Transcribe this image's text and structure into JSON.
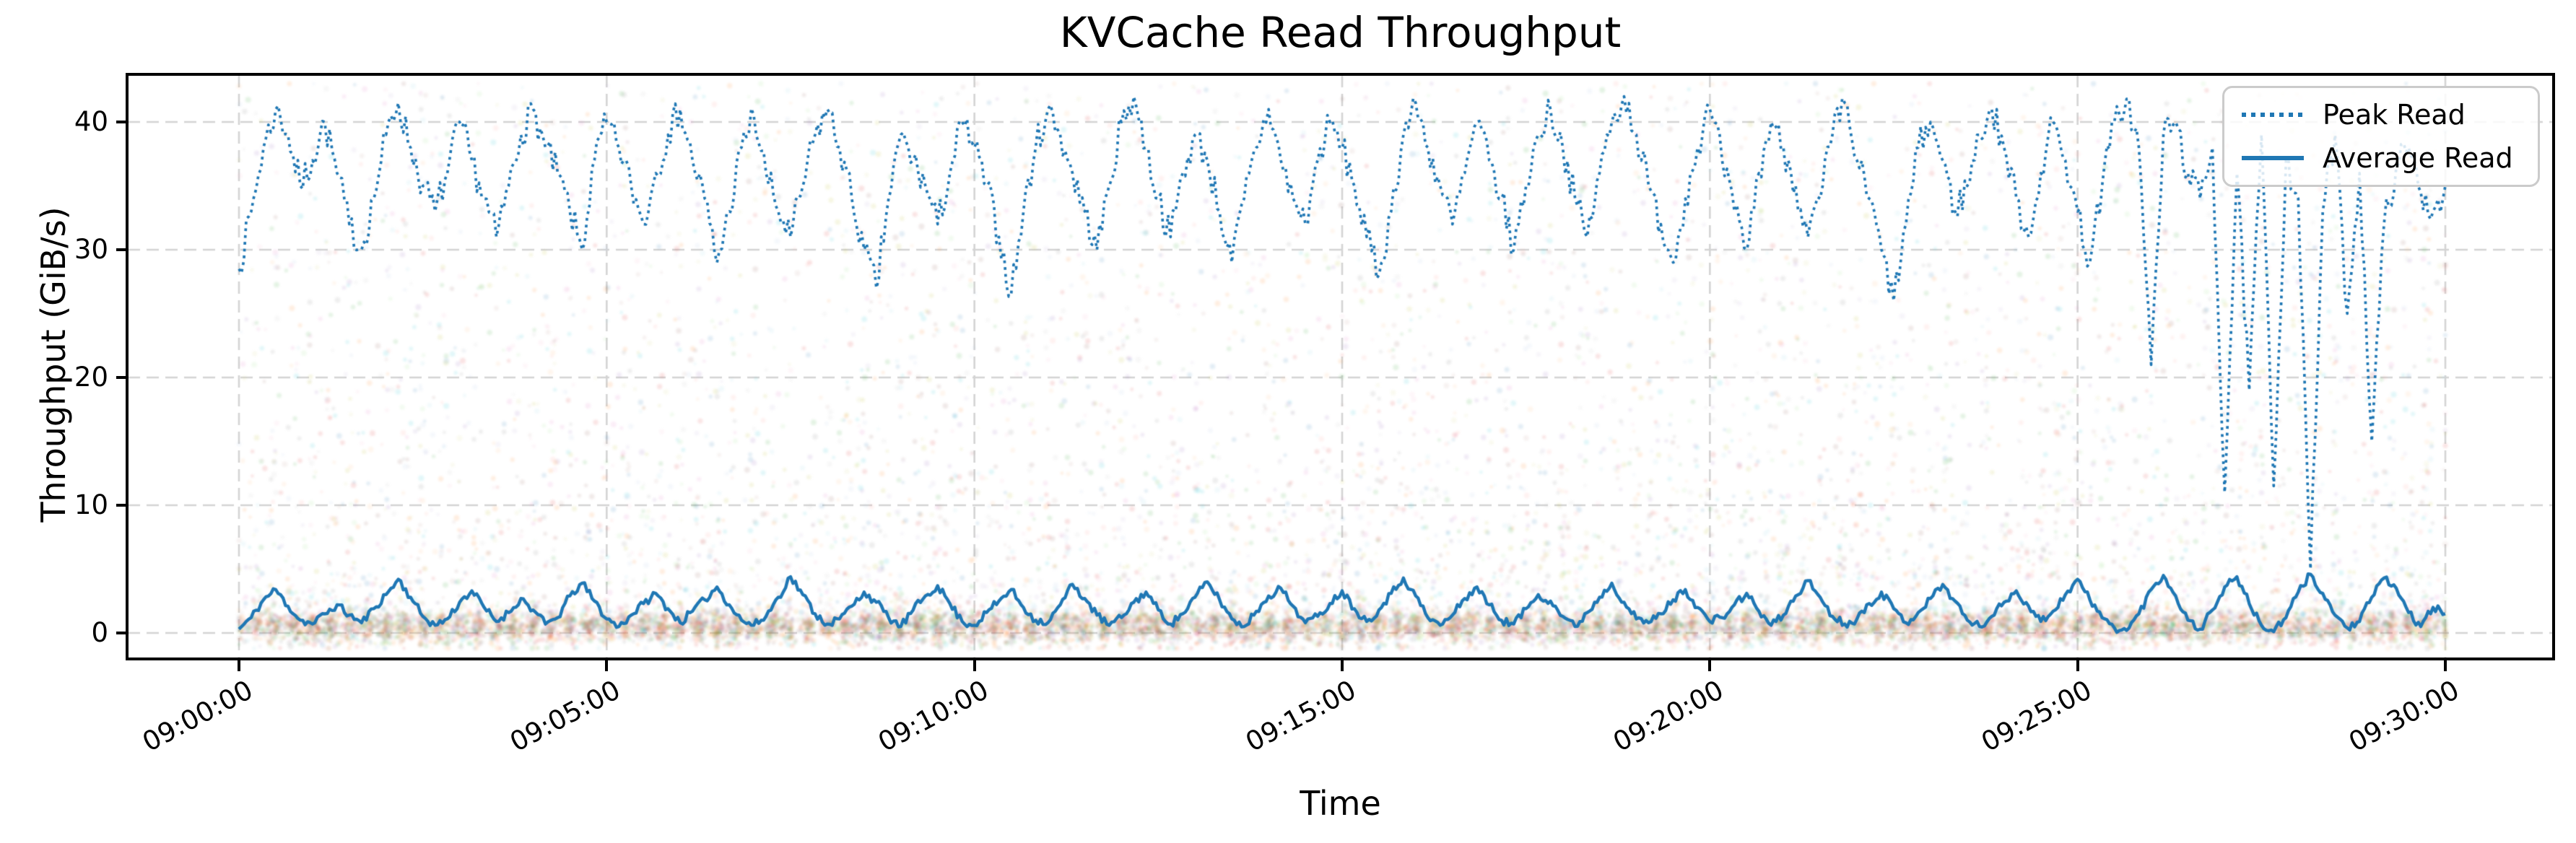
{
  "figure": {
    "title": "KVCache Read Throughput"
  },
  "axes": {
    "xlabel": "Time",
    "ylabel": "Throughput (GiB/s)"
  },
  "legend": {
    "position": "upper right",
    "items": [
      {
        "label": "Peak Read",
        "style": "dotted"
      },
      {
        "label": "Average Read",
        "style": "solid"
      }
    ]
  },
  "colors": {
    "line": "#1f77b4",
    "grid": "#d4d4d4",
    "spine": "#000000",
    "text": "#000000",
    "legend_border": "#cbcbcb",
    "background": "#ffffff"
  },
  "chart_data": {
    "type": "line",
    "title": "KVCache Read Throughput",
    "xlabel": "Time",
    "ylabel": "Throughput (GiB/s)",
    "x_tick_labels": [
      "09:00:00",
      "09:05:00",
      "09:10:00",
      "09:15:00",
      "09:20:00",
      "09:25:00",
      "09:30:00"
    ],
    "y_ticks": [
      0,
      10,
      20,
      30,
      40
    ],
    "x_range_seconds": [
      0,
      1800
    ],
    "sample_interval_s": 10,
    "ylim": [
      -2.05,
      43.75
    ],
    "grid": {
      "dashed": true,
      "color": "#d4d4d4",
      "dash": [
        17,
        9
      ],
      "line_width": 2.6
    },
    "series": [
      {
        "name": "Peak Read",
        "color": "#1f77b4",
        "line_style": "dotted",
        "line_width": 3.7,
        "jitter": 1.5,
        "noise_seed": 7,
        "clamp": [
          4,
          41.85
        ],
        "values": [
          28.5,
          33,
          38,
          41,
          39,
          35,
          37,
          40,
          36,
          32,
          30,
          34,
          39,
          41.5,
          38,
          35,
          33,
          36,
          40,
          37,
          34,
          31,
          35,
          39,
          41,
          38,
          36,
          33,
          30,
          37,
          40,
          38,
          35,
          32,
          36,
          39,
          41,
          37,
          34,
          29,
          33,
          38,
          40.5,
          36,
          33,
          31,
          35,
          39,
          41,
          38,
          34,
          30,
          27,
          34,
          39,
          37,
          35,
          32,
          36,
          40,
          38,
          35,
          31,
          26.5,
          33,
          38,
          41,
          39,
          36,
          33,
          30,
          35,
          40,
          42,
          38,
          34,
          31,
          36,
          39,
          37,
          33,
          29,
          34,
          38,
          41,
          37,
          34,
          32,
          37,
          40,
          38,
          35,
          31,
          28,
          33,
          39,
          41.5,
          38,
          35,
          32,
          36,
          40,
          37,
          34,
          30,
          35,
          39,
          41,
          38,
          34,
          31,
          36,
          40,
          42,
          39,
          35,
          32,
          29,
          34,
          38,
          41,
          37,
          33,
          30,
          36,
          40,
          38,
          35,
          31,
          34,
          39,
          41.5,
          37,
          34,
          30,
          26,
          32,
          38,
          40,
          37,
          33,
          35,
          39,
          41,
          38,
          34,
          31,
          36,
          40,
          37,
          33,
          29,
          35,
          40,
          41.8,
          38,
          21,
          39,
          40,
          36,
          34,
          38,
          11,
          36,
          19,
          39,
          11.5,
          37,
          34,
          5,
          33,
          39,
          25,
          36,
          15,
          32,
          36.5,
          38,
          34.5,
          33,
          35
        ]
      },
      {
        "name": "Average Read",
        "color": "#1f77b4",
        "line_style": "solid",
        "line_width": 4.4,
        "jitter": 0.38,
        "noise_seed": 11,
        "clamp": [
          0.05,
          4.8
        ],
        "values": [
          0.3,
          1.2,
          2.6,
          3.4,
          2.1,
          1.0,
          0.7,
          1.5,
          2.2,
          1.4,
          0.8,
          1.9,
          3.0,
          4.2,
          2.8,
          1.3,
          0.6,
          1.1,
          2.4,
          3.3,
          2.0,
          0.9,
          1.6,
          2.7,
          1.8,
          0.7,
          1.2,
          2.9,
          3.9,
          2.5,
          1.1,
          0.5,
          1.4,
          2.3,
          3.1,
          1.9,
          0.8,
          1.7,
          2.6,
          3.6,
          2.2,
          1.0,
          0.6,
          1.3,
          2.8,
          4.4,
          3.0,
          1.5,
          0.7,
          1.1,
          2.1,
          3.2,
          2.4,
          1.2,
          0.5,
          1.8,
          2.9,
          3.7,
          2.3,
          0.9,
          0.6,
          1.6,
          2.5,
          3.4,
          2.0,
          1.0,
          0.8,
          2.2,
          3.8,
          2.7,
          1.4,
          0.6,
          1.2,
          2.4,
          3.2,
          1.8,
          0.7,
          1.5,
          2.8,
          4.0,
          2.6,
          1.1,
          0.5,
          1.7,
          2.9,
          3.5,
          2.1,
          0.8,
          1.3,
          2.3,
          3.3,
          1.9,
          0.9,
          1.8,
          3.1,
          4.3,
          2.9,
          1.2,
          0.6,
          1.4,
          2.7,
          3.6,
          2.2,
          1.0,
          0.7,
          1.9,
          3.0,
          2.5,
          1.3,
          0.5,
          1.6,
          2.8,
          3.9,
          2.4,
          1.1,
          0.8,
          1.5,
          2.6,
          3.4,
          2.0,
          0.9,
          1.2,
          2.2,
          3.1,
          1.7,
          0.6,
          1.4,
          2.9,
          4.1,
          2.8,
          1.3,
          0.7,
          1.1,
          2.3,
          3.2,
          1.9,
          0.8,
          1.6,
          2.7,
          3.8,
          2.5,
          1.0,
          0.5,
          1.3,
          2.4,
          3.3,
          2.1,
          0.9,
          1.7,
          3.0,
          4.2,
          2.6,
          1.2,
          0.4,
          0.2,
          1.5,
          3.4,
          4.5,
          2.9,
          1.0,
          0.3,
          1.8,
          3.6,
          4.4,
          2.3,
          0.6,
          0.1,
          1.2,
          3.2,
          4.6,
          3.1,
          1.4,
          0.4,
          0.9,
          2.8,
          4.3,
          3.5,
          1.6,
          0.5,
          2.0,
          1.5
        ]
      }
    ],
    "scatter": {
      "description": "per-request read samples, semi-transparent multicolor dots",
      "seed": 1337,
      "count": 18000,
      "alpha": 0.13,
      "radius": 3.0,
      "band_fraction": 0.58,
      "band_center": 0.45,
      "band_sigma": 0.7,
      "tail_exponent": 2.6,
      "tail_max": 42.5,
      "column_spacing_s": 15,
      "column_sigma_s": 3.2,
      "column_fraction": 0.68,
      "palette": [
        "#1f77b4",
        "#ff7f0e",
        "#2ca02c",
        "#d62728",
        "#9467bd",
        "#8c564b",
        "#e377c2",
        "#7f7f7f",
        "#bcbd22",
        "#17becf",
        "#aec7e8",
        "#ffbb78",
        "#98df8a",
        "#ff9896",
        "#c5b0d5",
        "#c49c94",
        "#f7b6d2",
        "#c7c7c7",
        "#dbdb8d",
        "#9edae5"
      ],
      "band_palette": [
        "#ff7f0e",
        "#d62728",
        "#8c564b",
        "#2ca02c",
        "#7f7f7f",
        "#ffbb78"
      ]
    }
  }
}
